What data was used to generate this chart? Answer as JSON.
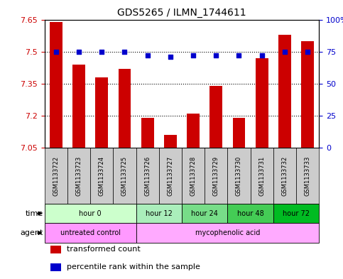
{
  "title": "GDS5265 / ILMN_1744611",
  "samples": [
    "GSM1133722",
    "GSM1133723",
    "GSM1133724",
    "GSM1133725",
    "GSM1133726",
    "GSM1133727",
    "GSM1133728",
    "GSM1133729",
    "GSM1133730",
    "GSM1133731",
    "GSM1133732",
    "GSM1133733"
  ],
  "bar_values": [
    7.64,
    7.44,
    7.38,
    7.42,
    7.19,
    7.11,
    7.21,
    7.34,
    7.19,
    7.47,
    7.58,
    7.55
  ],
  "percentile_values": [
    75,
    75,
    75,
    75,
    72,
    71,
    72,
    72,
    72,
    72,
    75,
    75
  ],
  "y_min": 7.05,
  "y_max": 7.65,
  "y_ticks": [
    7.05,
    7.2,
    7.35,
    7.5,
    7.65
  ],
  "right_y_ticks": [
    0,
    25,
    50,
    75,
    100
  ],
  "right_y_labels": [
    "0",
    "25",
    "50",
    "75",
    "100%"
  ],
  "bar_color": "#CC0000",
  "percentile_color": "#0000CC",
  "bar_width": 0.55,
  "time_groups": [
    {
      "label": "hour 0",
      "indices": [
        0,
        1,
        2,
        3
      ],
      "color": "#ccffcc"
    },
    {
      "label": "hour 12",
      "indices": [
        4,
        5
      ],
      "color": "#aaeebb"
    },
    {
      "label": "hour 24",
      "indices": [
        6,
        7
      ],
      "color": "#77dd88"
    },
    {
      "label": "hour 48",
      "indices": [
        8,
        9
      ],
      "color": "#44cc55"
    },
    {
      "label": "hour 72",
      "indices": [
        10,
        11
      ],
      "color": "#00bb22"
    }
  ],
  "agent_groups": [
    {
      "label": "untreated control",
      "indices": [
        0,
        1,
        2,
        3
      ],
      "color": "#ff99ff"
    },
    {
      "label": "mycophenolic acid",
      "indices": [
        4,
        5,
        6,
        7,
        8,
        9,
        10,
        11
      ],
      "color": "#ffaaff"
    }
  ],
  "sample_box_color": "#cccccc",
  "legend_items": [
    {
      "label": "transformed count",
      "color": "#CC0000"
    },
    {
      "label": "percentile rank within the sample",
      "color": "#0000CC"
    }
  ],
  "grid_color": "black",
  "background_color": "white"
}
